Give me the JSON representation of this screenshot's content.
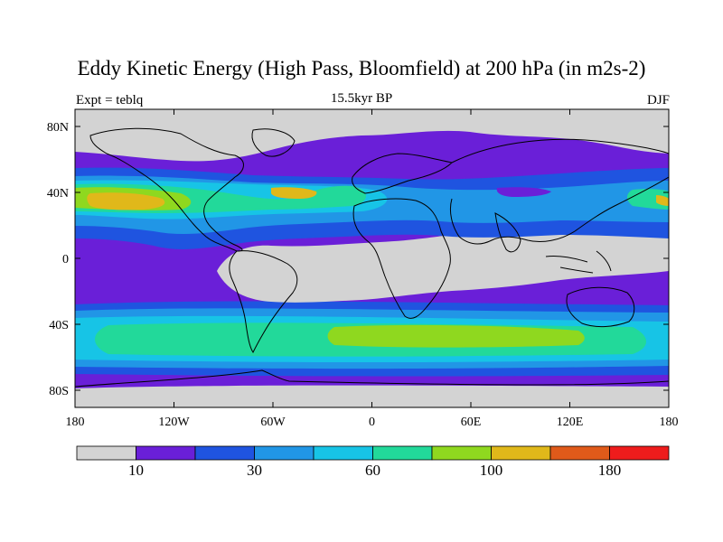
{
  "title": "Eddy Kinetic Energy (High Pass, Bloomfield) at 200 hPa (in m2s-2)",
  "left_label": "Expt = teblq",
  "center_label": "15.5kyr BP",
  "right_label": "DJF",
  "axes": {
    "lat_ticks": [
      "80N",
      "40N",
      "0",
      "40S",
      "80S"
    ],
    "lon_ticks": [
      "180",
      "120W",
      "60W",
      "0",
      "60E",
      "120E",
      "180"
    ]
  },
  "colorbar": {
    "colors": [
      "#d3d3d3",
      "#6a1fd8",
      "#1f54e0",
      "#2196e6",
      "#17c4e6",
      "#22d99a",
      "#8fd81f",
      "#e0b81a",
      "#e05a1a",
      "#ee1c1c"
    ],
    "labels": [
      {
        "text": "10",
        "after_box": 1
      },
      {
        "text": "30",
        "after_box": 3
      },
      {
        "text": "60",
        "after_box": 5
      },
      {
        "text": "100",
        "after_box": 7
      },
      {
        "text": "180",
        "after_box": 9
      }
    ]
  },
  "colors": {
    "land_outline": "#000000",
    "background": "#ffffff",
    "no_data": "#d3d3d3"
  }
}
